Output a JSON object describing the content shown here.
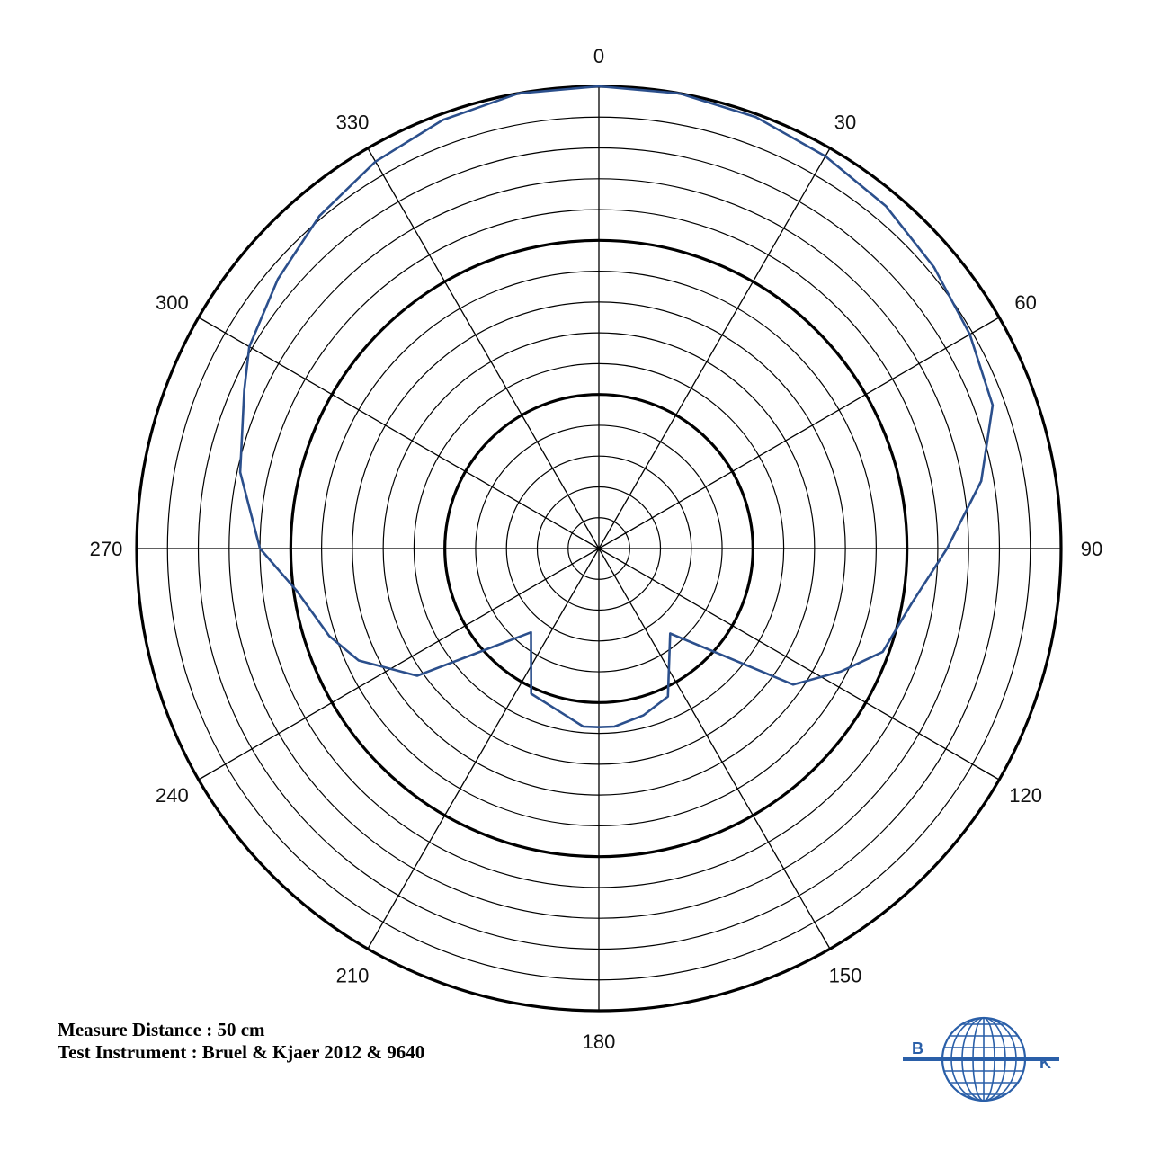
{
  "chart_data": {
    "type": "polar-line",
    "theta_direction": "clockwise",
    "theta_zero": "top",
    "angle_tick_labels": [
      "0",
      "30",
      "60",
      "90",
      "120",
      "150",
      "180",
      "210",
      "240",
      "270",
      "300",
      "330"
    ],
    "radial_rings": 15,
    "radial_major_every": 5,
    "radial_ticks_labeled": false,
    "series": [
      {
        "color": "#2b4f8c",
        "points": [
          {
            "angle": 0,
            "r": 15.0
          },
          {
            "angle": 10,
            "r": 15.0
          },
          {
            "angle": 20,
            "r": 14.9
          },
          {
            "angle": 30,
            "r": 14.7
          },
          {
            "angle": 40,
            "r": 14.5
          },
          {
            "angle": 50,
            "r": 14.2
          },
          {
            "angle": 60,
            "r": 13.9
          },
          {
            "angle": 70,
            "r": 13.6
          },
          {
            "angle": 80,
            "r": 12.6
          },
          {
            "angle": 90,
            "r": 11.3
          },
          {
            "angle": 100,
            "r": 10.3
          },
          {
            "angle": 110,
            "r": 9.8
          },
          {
            "angle": 117,
            "r": 8.8
          },
          {
            "angle": 125,
            "r": 7.7
          },
          {
            "angle": 140,
            "r": 3.6
          },
          {
            "angle": 155,
            "r": 5.3
          },
          {
            "angle": 165,
            "r": 5.6
          },
          {
            "angle": 175,
            "r": 5.8
          },
          {
            "angle": 180,
            "r": 5.8
          },
          {
            "angle": 185,
            "r": 5.8
          },
          {
            "angle": 195,
            "r": 5.4
          },
          {
            "angle": 205,
            "r": 5.2
          },
          {
            "angle": 219,
            "r": 3.5
          },
          {
            "angle": 235,
            "r": 7.2
          },
          {
            "angle": 245,
            "r": 8.6
          },
          {
            "angle": 252,
            "r": 9.2
          },
          {
            "angle": 262,
            "r": 9.9
          },
          {
            "angle": 270,
            "r": 11.0
          },
          {
            "angle": 282,
            "r": 11.9
          },
          {
            "angle": 294,
            "r": 12.6
          },
          {
            "angle": 300,
            "r": 13.1
          },
          {
            "angle": 310,
            "r": 13.6
          },
          {
            "angle": 320,
            "r": 14.1
          },
          {
            "angle": 330,
            "r": 14.5
          },
          {
            "angle": 340,
            "r": 14.8
          },
          {
            "angle": 350,
            "r": 15.0
          },
          {
            "angle": 360,
            "r": 15.0
          }
        ]
      }
    ]
  },
  "notes": {
    "line1": "Measure Distance : 50 cm",
    "line2": "Test Instrument : Bruel & Kjaer 2012 & 9640"
  },
  "logo": {
    "letter_left": "B",
    "letter_right": "K",
    "color": "#2a5fa8"
  }
}
